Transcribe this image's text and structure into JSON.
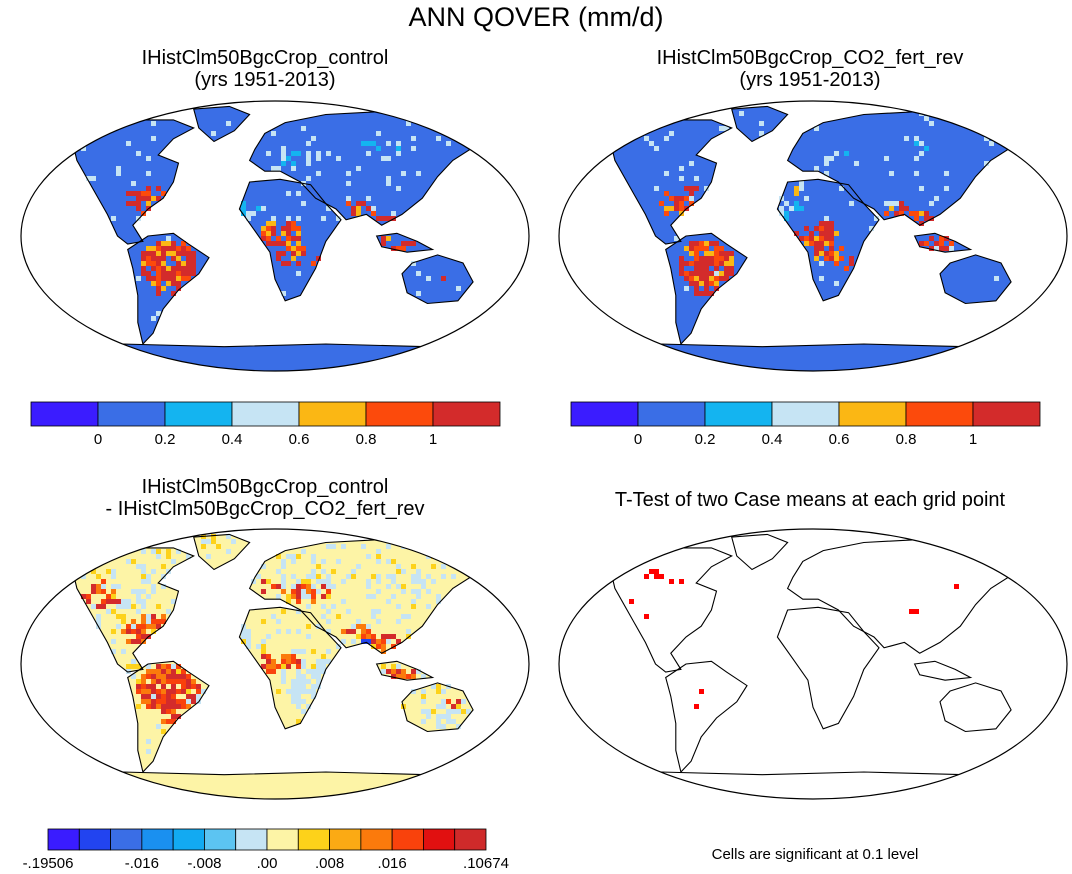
{
  "title": "ANN QOVER (mm/d)",
  "panels": {
    "top_left": {
      "title_line1": "IHistClm50BgcCrop_control",
      "title_line2": "(yrs 1951-2013)"
    },
    "top_right": {
      "title_line1": "IHistClm50BgcCrop_CO2_fert_rev",
      "title_line2": "(yrs 1951-2013)"
    },
    "bottom_left": {
      "title_line1": "IHistClm50BgcCrop_control",
      "title_line2": "- IHistClm50BgcCrop_CO2_fert_rev"
    },
    "bottom_right": {
      "title": "T-Test of two Case means at each grid point",
      "note": "Cells are significant at 0.1 level"
    }
  },
  "colorbar_top": {
    "colors": [
      "#3b1cff",
      "#3a6ee6",
      "#14b4f0",
      "#c6e4f4",
      "#fbb714",
      "#fc4a0c",
      "#d32b2b"
    ],
    "labels": [
      "0",
      "0.2",
      "0.4",
      "0.6",
      "0.8",
      "1"
    ]
  },
  "colorbar_bottom": {
    "colors": [
      "#3a1cff",
      "#2244f0",
      "#3a6ee6",
      "#1a90f0",
      "#12aaf2",
      "#5cc4f2",
      "#c6e4f4",
      "#fdf4a6",
      "#fdd21a",
      "#fbaa14",
      "#fb7a0c",
      "#f9420c",
      "#e11010",
      "#cf2a2a"
    ],
    "labels": [
      "-.19506",
      "-.016",
      "-.008",
      ".00",
      ".008",
      ".016",
      ".10674"
    ]
  },
  "map_colors": {
    "ocean": "#ffffff",
    "land_base_abs": "#3a6ee6",
    "wet_abs": "#d32b2b",
    "land_base_diff": "#fdf4a6",
    "diff_light_blue": "#c6e4f4",
    "diff_positive": "#fb7a0c",
    "diff_strong": "#d32b2b",
    "diff_negative": "#2244f0",
    "significant": "#ff0000",
    "outline": "#000000"
  }
}
